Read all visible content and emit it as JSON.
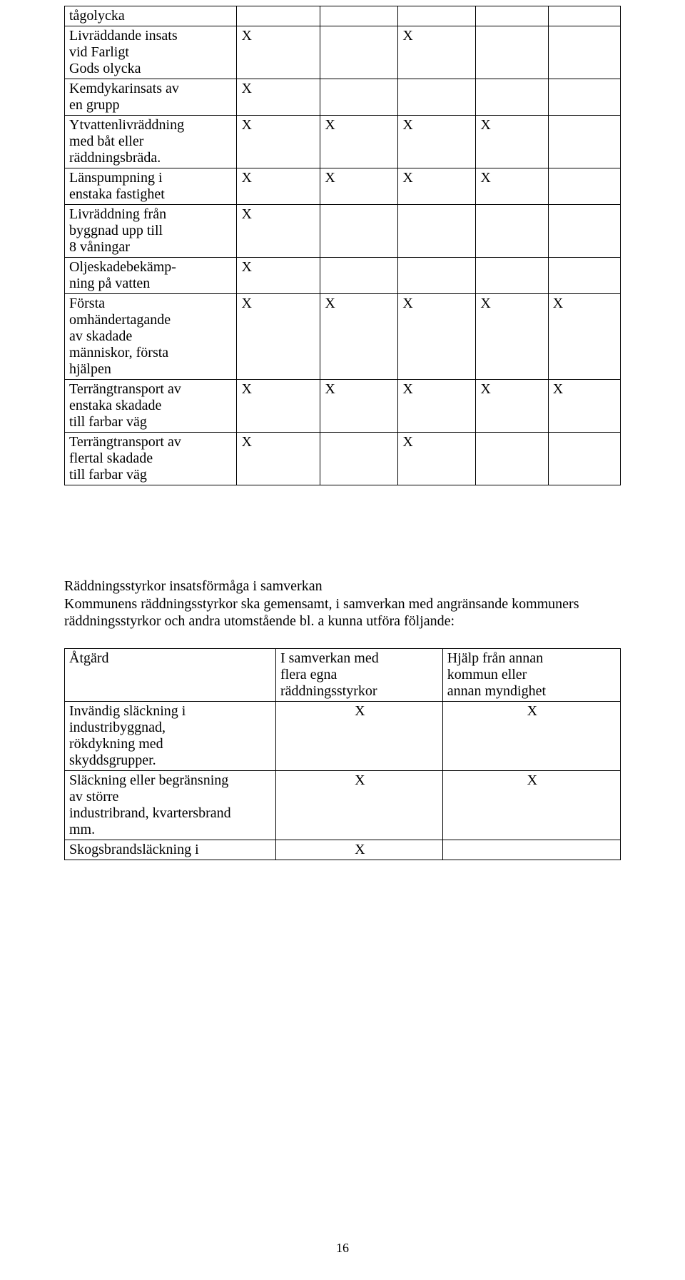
{
  "table1": {
    "rows": [
      {
        "label": "tågolycka",
        "marks": [
          "",
          "",
          "",
          "",
          ""
        ]
      },
      {
        "label": "Livräddande insats\nvid Farligt\nGods olycka",
        "marks": [
          "X",
          "",
          "X",
          "",
          ""
        ]
      },
      {
        "label": "Kemdykarinsats av\nen grupp",
        "marks": [
          "X",
          "",
          "",
          "",
          ""
        ]
      },
      {
        "label": "Ytvattenlivräddning\nmed båt eller\nräddningsbräda.",
        "marks": [
          "X",
          "X",
          "X",
          "X",
          ""
        ]
      },
      {
        "label": "Länspumpning i\nenstaka fastighet",
        "marks": [
          "X",
          "X",
          "X",
          "X",
          ""
        ]
      },
      {
        "label": "Livräddning från\nbyggnad upp till\n8 våningar",
        "marks": [
          "X",
          "",
          "",
          "",
          ""
        ]
      },
      {
        "label": "Oljeskadebekämp-\nning på vatten",
        "marks": [
          "X",
          "",
          "",
          "",
          ""
        ]
      },
      {
        "label": "Första\nomhändertagande\nav skadade\nmänniskor, första\nhjälpen",
        "marks": [
          "X",
          "X",
          "X",
          "X",
          "X"
        ]
      },
      {
        "label": "Terrängtransport av\nenstaka skadade\ntill farbar väg",
        "marks": [
          "X",
          "X",
          "X",
          "X",
          "X"
        ]
      },
      {
        "label": "Terrängtransport av\nflertal skadade\ntill farbar väg",
        "marks": [
          "X",
          "",
          "X",
          "",
          ""
        ]
      }
    ]
  },
  "section": {
    "heading": "Räddningsstyrkor insatsförmåga i samverkan",
    "body": "Kommunens räddningsstyrkor ska gemensamt, i samverkan med angränsande kommuners räddningsstyrkor och andra utomstående bl. a kunna utföra följande:"
  },
  "table2": {
    "headers": [
      "Åtgärd",
      "I samverkan med\nflera egna\nräddningsstyrkor",
      "Hjälp från annan\nkommun eller\nannan myndighet"
    ],
    "rows": [
      {
        "label": "Invändig släckning i\nindustribyggnad,\nrökdykning med\nskyddsgrupper.",
        "c2": "X",
        "c3": "X"
      },
      {
        "label": "Släckning eller begränsning\nav större\nindustribrand, kvartersbrand\nmm.",
        "c2": "X",
        "c3": "X"
      },
      {
        "label": "Skogsbrandsläckning i",
        "c2": "X",
        "c3": ""
      }
    ]
  },
  "pageNumber": "16"
}
